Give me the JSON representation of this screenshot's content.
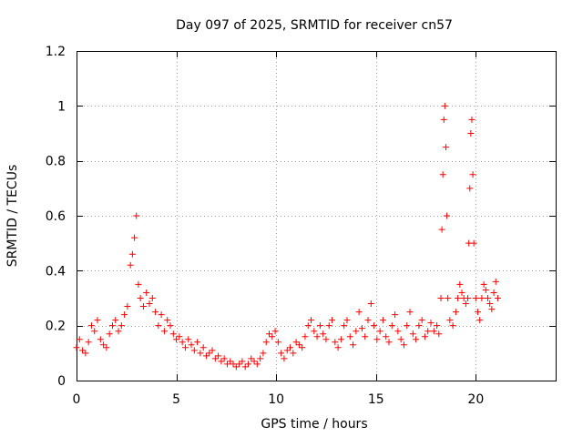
{
  "chart_data": {
    "type": "scatter",
    "title": "Day 097 of 2025, SRMTID for receiver cn57",
    "xlabel": "GPS time / hours",
    "ylabel": "SRMTID / TECUs",
    "xlim": [
      0,
      24
    ],
    "ylim": [
      0,
      1.2
    ],
    "x_ticks": [
      0,
      5,
      10,
      15,
      20
    ],
    "y_ticks": [
      0,
      0.2,
      0.4,
      0.6,
      0.8,
      1.0,
      1.2
    ],
    "x_tick_labels": [
      "0",
      "5",
      "10",
      "15",
      "20"
    ],
    "y_tick_labels": [
      "0",
      "0.2",
      "0.4",
      "0.6",
      "0.8",
      "1",
      "1.2"
    ],
    "grid": true,
    "marker": "+",
    "color": "#ff0000",
    "series": [
      {
        "name": "SRMTID",
        "x": [
          0.0,
          0.15,
          0.3,
          0.45,
          0.6,
          0.75,
          0.9,
          1.05,
          1.2,
          1.35,
          1.5,
          1.65,
          1.8,
          1.95,
          2.1,
          2.25,
          2.4,
          2.55,
          2.7,
          2.8,
          2.9,
          3.0,
          3.1,
          3.2,
          3.35,
          3.5,
          3.65,
          3.8,
          3.95,
          4.1,
          4.25,
          4.4,
          4.55,
          4.7,
          4.85,
          5.0,
          5.15,
          5.3,
          5.45,
          5.6,
          5.75,
          5.9,
          6.05,
          6.2,
          6.35,
          6.5,
          6.65,
          6.8,
          6.95,
          7.1,
          7.25,
          7.4,
          7.55,
          7.7,
          7.85,
          8.0,
          8.15,
          8.3,
          8.45,
          8.6,
          8.75,
          8.9,
          9.05,
          9.2,
          9.35,
          9.5,
          9.65,
          9.8,
          9.95,
          10.1,
          10.25,
          10.4,
          10.55,
          10.7,
          10.85,
          11.0,
          11.15,
          11.3,
          11.45,
          11.6,
          11.75,
          11.9,
          12.05,
          12.2,
          12.35,
          12.5,
          12.65,
          12.8,
          12.95,
          13.1,
          13.25,
          13.4,
          13.55,
          13.7,
          13.85,
          14.0,
          14.15,
          14.3,
          14.45,
          14.6,
          14.75,
          14.9,
          15.05,
          15.2,
          15.35,
          15.5,
          15.65,
          15.8,
          15.95,
          16.1,
          16.25,
          16.4,
          16.55,
          16.7,
          16.85,
          17.0,
          17.15,
          17.3,
          17.45,
          17.6,
          17.75,
          17.9,
          18.05,
          18.15,
          18.25,
          18.3,
          18.35,
          18.4,
          18.45,
          18.5,
          18.55,
          18.6,
          18.7,
          18.85,
          19.0,
          19.1,
          19.2,
          19.3,
          19.4,
          19.5,
          19.6,
          19.65,
          19.7,
          19.75,
          19.8,
          19.85,
          19.9,
          20.0,
          20.1,
          20.2,
          20.3,
          20.4,
          20.5,
          20.6,
          20.7,
          20.8,
          20.9,
          21.0,
          21.1
        ],
        "y": [
          0.12,
          0.15,
          0.11,
          0.1,
          0.14,
          0.2,
          0.18,
          0.22,
          0.15,
          0.13,
          0.12,
          0.17,
          0.2,
          0.22,
          0.18,
          0.2,
          0.24,
          0.27,
          0.42,
          0.46,
          0.52,
          0.6,
          0.35,
          0.3,
          0.27,
          0.32,
          0.28,
          0.3,
          0.25,
          0.2,
          0.24,
          0.18,
          0.22,
          0.2,
          0.17,
          0.15,
          0.16,
          0.14,
          0.12,
          0.15,
          0.13,
          0.11,
          0.14,
          0.1,
          0.12,
          0.09,
          0.1,
          0.11,
          0.08,
          0.09,
          0.07,
          0.08,
          0.06,
          0.07,
          0.06,
          0.05,
          0.06,
          0.07,
          0.05,
          0.06,
          0.08,
          0.07,
          0.06,
          0.08,
          0.1,
          0.14,
          0.17,
          0.16,
          0.18,
          0.14,
          0.1,
          0.08,
          0.11,
          0.12,
          0.1,
          0.14,
          0.13,
          0.12,
          0.16,
          0.2,
          0.22,
          0.18,
          0.16,
          0.2,
          0.17,
          0.15,
          0.2,
          0.22,
          0.14,
          0.12,
          0.15,
          0.2,
          0.22,
          0.16,
          0.13,
          0.18,
          0.25,
          0.19,
          0.16,
          0.22,
          0.28,
          0.2,
          0.15,
          0.18,
          0.22,
          0.16,
          0.14,
          0.2,
          0.24,
          0.18,
          0.15,
          0.13,
          0.2,
          0.25,
          0.17,
          0.15,
          0.2,
          0.22,
          0.16,
          0.18,
          0.21,
          0.18,
          0.2,
          0.17,
          0.3,
          0.55,
          0.75,
          0.95,
          1.0,
          0.85,
          0.6,
          0.3,
          0.22,
          0.2,
          0.25,
          0.3,
          0.35,
          0.32,
          0.3,
          0.28,
          0.3,
          0.5,
          0.7,
          0.9,
          0.95,
          0.75,
          0.5,
          0.3,
          0.25,
          0.22,
          0.3,
          0.35,
          0.33,
          0.3,
          0.28,
          0.26,
          0.32,
          0.36,
          0.3
        ]
      }
    ]
  }
}
